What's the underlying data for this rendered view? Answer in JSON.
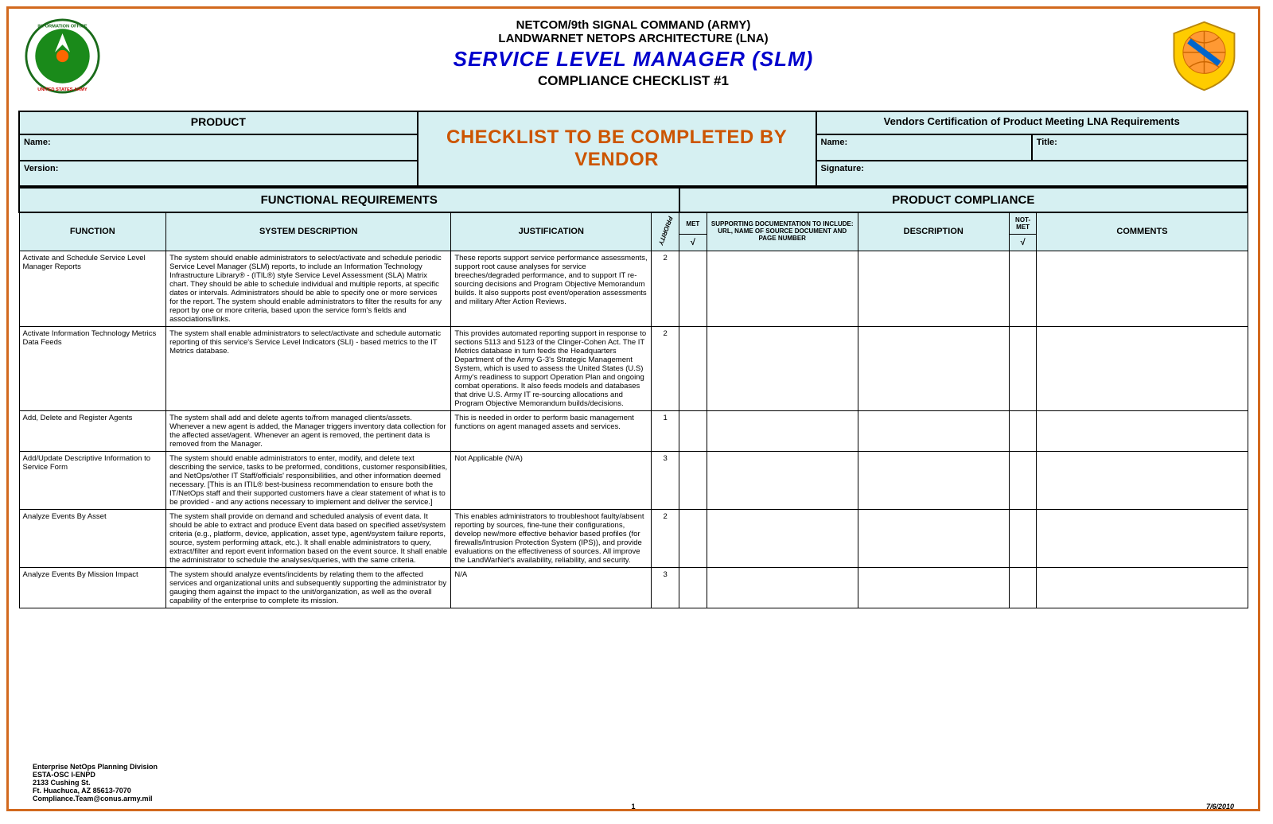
{
  "header": {
    "line1": "NETCOM/9th SIGNAL COMMAND (ARMY)",
    "line2": "LANDWARNET NETOPS ARCHITECTURE (LNA)",
    "title": "SERVICE LEVEL MANAGER (SLM)",
    "subtitle": "COMPLIANCE CHECKLIST #1"
  },
  "top": {
    "product_label": "PRODUCT",
    "name_label": "Name:",
    "version_label": "Version:",
    "center_line1": "CHECKLIST TO BE COMPLETED BY",
    "center_line2": "VENDOR",
    "vendor_cert": "Vendors Certification of Product Meeting LNA Requirements",
    "vname_label": "Name:",
    "vtitle_label": "Title:",
    "vsig_label": "Signature:"
  },
  "sections": {
    "left": "FUNCTIONAL REQUIREMENTS",
    "right": "PRODUCT COMPLIANCE"
  },
  "columns": {
    "function": "FUNCTION",
    "sysdesc": "SYSTEM DESCRIPTION",
    "justification": "JUSTIFICATION",
    "priority": "PRIORITY",
    "met": "MET",
    "support": "SUPPORTING DOCUMENTATION TO INCLUDE: URL, NAME OF SOURCE DOCUMENT AND PAGE NUMBER",
    "description": "DESCRIPTION",
    "notmet": "NOT-MET",
    "comments": "COMMENTS",
    "check": "√"
  },
  "rows": [
    {
      "function": "Activate and Schedule Service Level Manager Reports",
      "sysdesc": "The system should enable administrators to select/activate and schedule periodic Service Level Manager (SLM) reports, to include an Information Technology Infrastructure Library® - (ITIL®) style Service Level Assessment (SLA) Matrix chart.  They should be able to schedule individual and multiple reports, at specific dates or intervals.  Administrators should be able to specify one or more services for the report.  The system should enable administrators to filter the results for any report by one or more criteria, based upon the service form's fields and associations/links.",
      "justification": "These reports support service performance assessments, support root cause analyses for service breeches/degraded performance, and to support IT re-sourcing decisions and Program Objective Memorandum builds.  It also supports post event/operation assessments and military After Action Reviews.",
      "priority": "2"
    },
    {
      "function": "Activate Information Technology Metrics Data Feeds",
      "sysdesc": "The system shall enable administrators to select/activate and schedule automatic reporting of this service's Service Level Indicators (SLI) - based metrics to the IT Metrics database.",
      "justification": "This provides automated reporting support in response to sections 5113 and 5123 of the Clinger-Cohen Act.  The IT Metrics database in turn feeds the Headquarters Department of the Army G-3's Strategic Management System, which is used to assess the United States (U.S) Army's readiness to support Operation Plan and ongoing combat operations.  It also feeds models and databases that drive U.S. Army IT re-sourcing allocations and Program Objective Memorandum builds/decisions.",
      "priority": "2"
    },
    {
      "function": "Add, Delete and Register Agents",
      "sysdesc": "The system shall add and delete agents to/from managed clients/assets.  Whenever a new agent is added, the Manager triggers inventory data collection for the affected asset/agent.  Whenever an agent is removed, the pertinent data is removed from the Manager.",
      "justification": "This is needed in order to perform basic management functions on agent managed assets and services.",
      "priority": "1"
    },
    {
      "function": "Add/Update Descriptive Information to Service Form",
      "sysdesc": "The system should enable administrators to enter, modify, and delete text describing the service, tasks to be preformed, conditions, customer responsibilities, and NetOps/other IT Staff/officials' responsibilities, and other information deemed necessary.  [This is an ITIL® best-business recommendation to ensure both the IT/NetOps staff and their supported customers have a clear statement of what is to be provided - and any actions necessary to implement and deliver the service.]",
      "justification": "Not Applicable (N/A)",
      "priority": "3"
    },
    {
      "function": "Analyze Events By Asset",
      "sysdesc": "The system shall provide on demand and scheduled analysis of event data.  It should be able to extract and produce Event data based on specified asset/system criteria (e.g., platform, device, application, asset type, agent/system failure reports, source, system performing attack, etc.).  It shall enable administrators to query, extract/filter and report event information based on the event source.  It shall enable the administrator to schedule the analyses/queries, with the same criteria.",
      "justification": "This enables administrators to troubleshoot faulty/absent reporting by sources, fine-tune their configurations, develop new/more effective behavior based profiles (for firewalls/Intrusion Protection System (IPS)), and provide evaluations on the effectiveness of sources.  All improve the LandWarNet's availability, reliability, and security.",
      "priority": "2"
    },
    {
      "function": "Analyze Events By Mission Impact",
      "sysdesc": "The system should analyze events/incidents by relating them to the affected services and organizational units and subsequently supporting the administrator by gauging them against the impact to the unit/organization, as well as the overall capability of the enterprise to complete its mission.",
      "justification": "N/A",
      "priority": "3"
    }
  ],
  "footer": {
    "org1": "Enterprise NetOps Planning Division",
    "org2": "ESTA-OSC I-ENPD",
    "org3": "2133 Cushing St.",
    "org4": "Ft. Huachuca, AZ 85613-7070",
    "org5": "Compliance.Team@conus.army.mil",
    "page": "1",
    "date": "7/6/2010"
  },
  "colors": {
    "border": "#d2691e",
    "title": "#0000cc",
    "centertext": "#cc5500",
    "headerbg": "#d6f0f2"
  },
  "colwidths": {
    "function": 170,
    "sysdesc": 330,
    "justification": 232,
    "priority": 32,
    "met": 32,
    "support": 175,
    "description": 175,
    "notmet": 32,
    "comments": 244
  }
}
